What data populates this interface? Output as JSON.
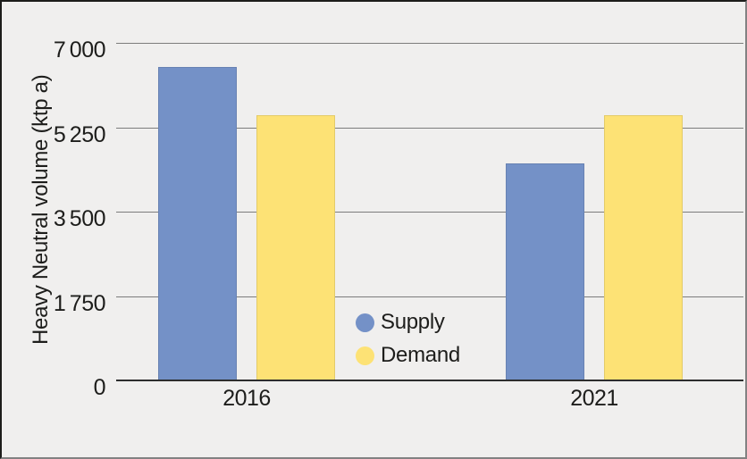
{
  "chart_data": {
    "type": "bar",
    "title": "",
    "xlabel": "",
    "ylabel": "Heavy Neutral volume (ktp a)",
    "categories": [
      "2016",
      "2021"
    ],
    "series": [
      {
        "name": "Supply",
        "color": "#7491c7",
        "values": [
          6500,
          4500
        ]
      },
      {
        "name": "Demand",
        "color": "#fde275",
        "values": [
          5500,
          5500
        ]
      }
    ],
    "ylim": [
      0,
      7000
    ],
    "yticks": [
      {
        "value": 0,
        "label": "0"
      },
      {
        "value": 1750,
        "label": "1 750"
      },
      {
        "value": 3500,
        "label": "3 500"
      },
      {
        "value": 5250,
        "label": "5 250"
      },
      {
        "value": 7000,
        "label": "7 000"
      }
    ],
    "grid": "horizontal",
    "legend": {
      "position": "inside-plot-lower-center",
      "entries": [
        "Supply",
        "Demand"
      ]
    }
  },
  "colors": {
    "background": "#f0efee",
    "gridline": "#7c7c7c",
    "axis_line": "#2d2d2d",
    "text": "#1d1d1b",
    "supply_blue": "#7491c7",
    "demand_yellow": "#fde275"
  }
}
